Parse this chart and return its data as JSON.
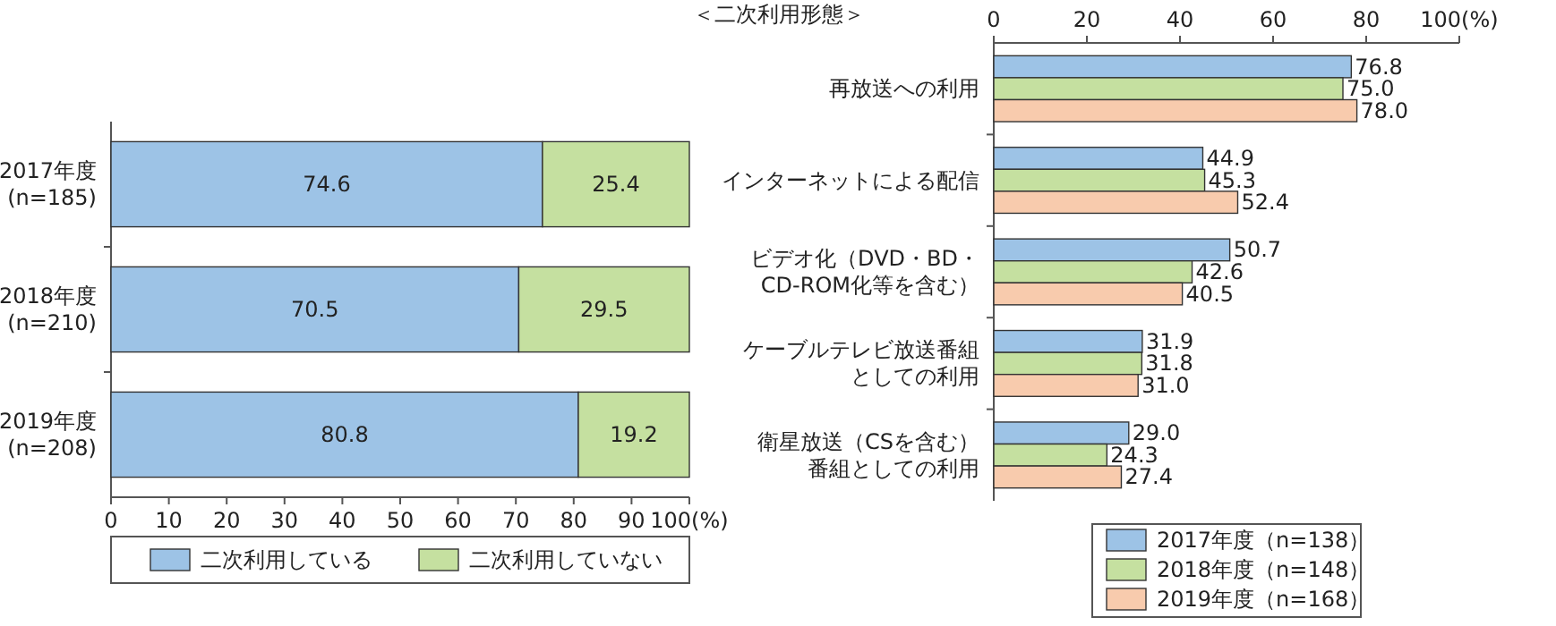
{
  "chart_data": [
    {
      "type": "bar",
      "orientation": "horizontal",
      "stacked": true,
      "categories": [
        "2017年度\n(n=185)",
        "2018年度\n(n=210)",
        "2019年度\n(n=208)"
      ],
      "series": [
        {
          "name": "二次利用している",
          "color": "#9dc3e6",
          "values": [
            74.6,
            70.5,
            80.8
          ]
        },
        {
          "name": "二次利用していない",
          "color": "#c5e0a0",
          "values": [
            25.4,
            29.5,
            19.2
          ]
        }
      ],
      "xlim": [
        0,
        100
      ],
      "xticks": [
        0,
        10,
        20,
        30,
        40,
        50,
        60,
        70,
        80,
        90,
        {
          "value": 100,
          "label": "100(%)"
        }
      ],
      "data_labels": true,
      "legend": "bottom"
    },
    {
      "type": "bar",
      "orientation": "horizontal",
      "title": "＜二次利用形態＞",
      "categories": [
        "再放送への利用",
        "インターネットによる配信",
        "ビデオ化（DVD・BD・\nCD-ROM化等を含む）",
        "ケーブルテレビ放送番組としての利用",
        "衛星放送（CSを含む）番組としての利用"
      ],
      "series": [
        {
          "name": "2017年度（n=138）",
          "color": "#9dc3e6",
          "values": [
            76.8,
            44.9,
            50.7,
            31.9,
            29.0
          ],
          "value_labels": [
            "76.8",
            "44.9",
            "50.7",
            "31.9",
            "29.0"
          ]
        },
        {
          "name": "2018年度（n=148）",
          "color": "#c5e0a0",
          "values": [
            75.0,
            45.3,
            42.6,
            31.8,
            24.3
          ],
          "value_labels": [
            "75.0",
            "45.3",
            "42.6",
            "31.8",
            "24.3"
          ]
        },
        {
          "name": "2019年度（n=168）",
          "color": "#f8cbad",
          "values": [
            78.0,
            52.4,
            40.5,
            31.0,
            27.4
          ],
          "value_labels": [
            "78.0",
            "52.4",
            "40.5",
            "31.0",
            "27.4"
          ]
        }
      ],
      "xlim": [
        0,
        100
      ],
      "xticks": [
        0,
        20,
        40,
        60,
        80,
        {
          "value": 100,
          "label": "100(%)"
        }
      ],
      "legend": "bottom"
    }
  ]
}
